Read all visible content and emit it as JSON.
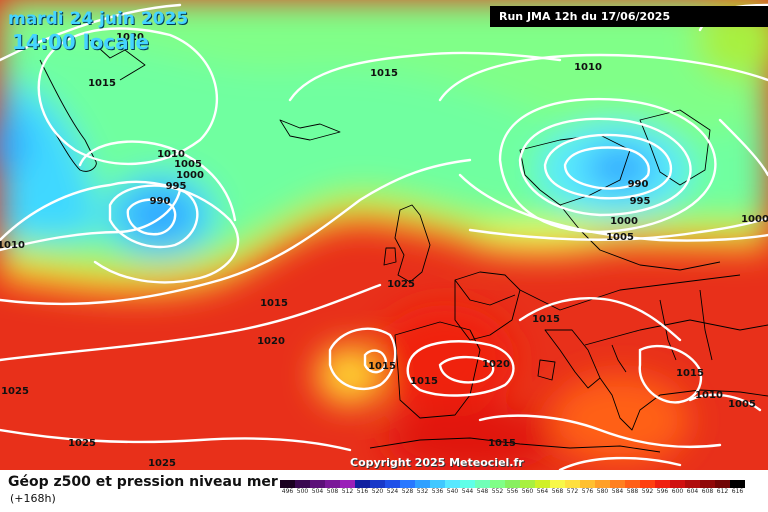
{
  "header": {
    "date_line": "mardi 24 juin 2025",
    "time_line": "14:00 locale"
  },
  "run_info": "Run JMA 12h du 17/06/2025",
  "copyright": "Copyright 2025 Meteociel.fr",
  "footer": {
    "title": "Géop z500 et pression niveau mer",
    "subtitle": "(+168h)"
  },
  "pressure_labels": [
    "1020",
    "1015",
    "1015",
    "1010",
    "1010",
    "1005",
    "1000",
    "995",
    "990",
    "1010",
    "990",
    "995",
    "1000",
    "1005",
    "1000",
    "1015",
    "1025",
    "1020",
    "1015",
    "1015",
    "1020",
    "1015",
    "1015",
    "1010",
    "1005",
    "1025",
    "1025",
    "1025",
    "1015"
  ],
  "colors": {
    "isobar": "#ffffff",
    "coast": "#000000",
    "header_text": "#45d4ff",
    "run_box_bg": "#000000"
  },
  "scale": [
    {
      "v": "496",
      "c": "#1a0020"
    },
    {
      "v": "500",
      "c": "#3a0850"
    },
    {
      "v": "504",
      "c": "#5c1078"
    },
    {
      "v": "508",
      "c": "#7a1898"
    },
    {
      "v": "512",
      "c": "#9a20b8"
    },
    {
      "v": "516",
      "c": "#1020a0"
    },
    {
      "v": "520",
      "c": "#1838c8"
    },
    {
      "v": "524",
      "c": "#2050e8"
    },
    {
      "v": "528",
      "c": "#2878ff"
    },
    {
      "v": "532",
      "c": "#30a0ff"
    },
    {
      "v": "536",
      "c": "#40c8ff"
    },
    {
      "v": "540",
      "c": "#58e8ff"
    },
    {
      "v": "544",
      "c": "#60ffe8"
    },
    {
      "v": "548",
      "c": "#70ffb8"
    },
    {
      "v": "552",
      "c": "#80ff88"
    },
    {
      "v": "556",
      "c": "#88f060"
    },
    {
      "v": "560",
      "c": "#a8f040"
    },
    {
      "v": "564",
      "c": "#d0f028"
    },
    {
      "v": "568",
      "c": "#f8f848"
    },
    {
      "v": "572",
      "c": "#ffe040"
    },
    {
      "v": "576",
      "c": "#ffc030"
    },
    {
      "v": "580",
      "c": "#ffa028"
    },
    {
      "v": "584",
      "c": "#ff8020"
    },
    {
      "v": "588",
      "c": "#ff6018"
    },
    {
      "v": "592",
      "c": "#ff4010"
    },
    {
      "v": "596",
      "c": "#f02010"
    },
    {
      "v": "600",
      "c": "#d01010"
    },
    {
      "v": "604",
      "c": "#b00c0c"
    },
    {
      "v": "608",
      "c": "#900808"
    },
    {
      "v": "612",
      "c": "#700404"
    },
    {
      "v": "616",
      "c": "#000000"
    }
  ]
}
